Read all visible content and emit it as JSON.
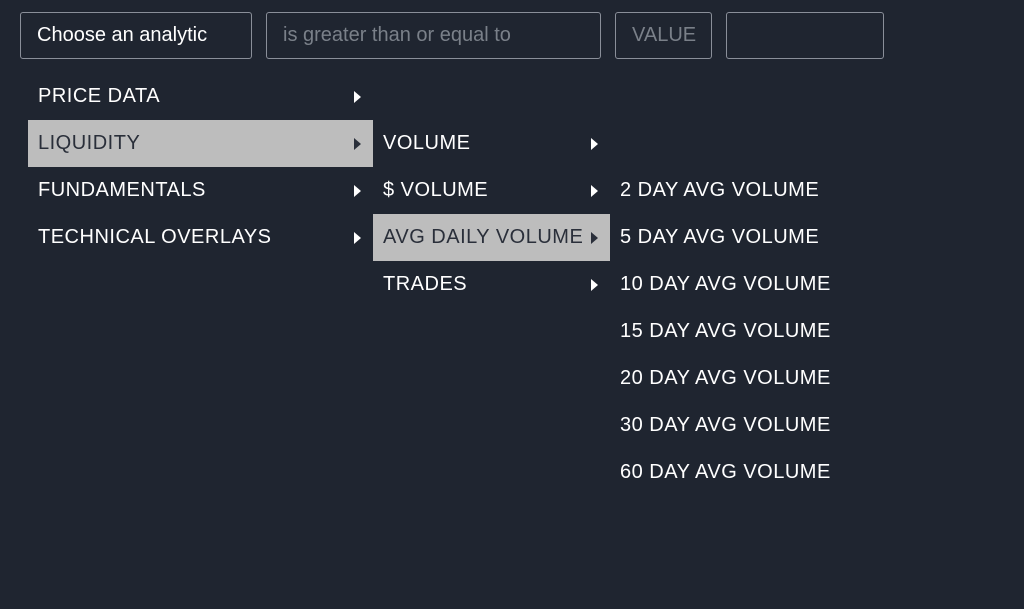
{
  "filters": {
    "analytic_label": "Choose an analytic",
    "operator_placeholder": "is greater than or equal to",
    "value_placeholder": "VALUE"
  },
  "menu": {
    "level1": [
      {
        "label": "PRICE DATA",
        "selected": false
      },
      {
        "label": "LIQUIDITY",
        "selected": true
      },
      {
        "label": "FUNDAMENTALS",
        "selected": false
      },
      {
        "label": "TECHNICAL OVERLAYS",
        "selected": false
      }
    ],
    "level2": [
      {
        "label": "VOLUME",
        "selected": false
      },
      {
        "label": "$ VOLUME",
        "selected": false
      },
      {
        "label": "AVG DAILY VOLUME",
        "selected": true
      },
      {
        "label": "TRADES",
        "selected": false
      }
    ],
    "level3": [
      {
        "label": "2 DAY AVG VOLUME"
      },
      {
        "label": "5 DAY AVG VOLUME"
      },
      {
        "label": "10 DAY AVG VOLUME"
      },
      {
        "label": "15 DAY AVG VOLUME"
      },
      {
        "label": "20 DAY AVG VOLUME"
      },
      {
        "label": "30 DAY AVG VOLUME"
      },
      {
        "label": "60 DAY AVG VOLUME"
      }
    ]
  },
  "colors": {
    "background": "#1f2530",
    "border": "#8a8f99",
    "text": "#ffffff",
    "placeholder": "#7a8089",
    "selected_bg": "#bdbdbd",
    "selected_text": "#2a2f3a"
  }
}
